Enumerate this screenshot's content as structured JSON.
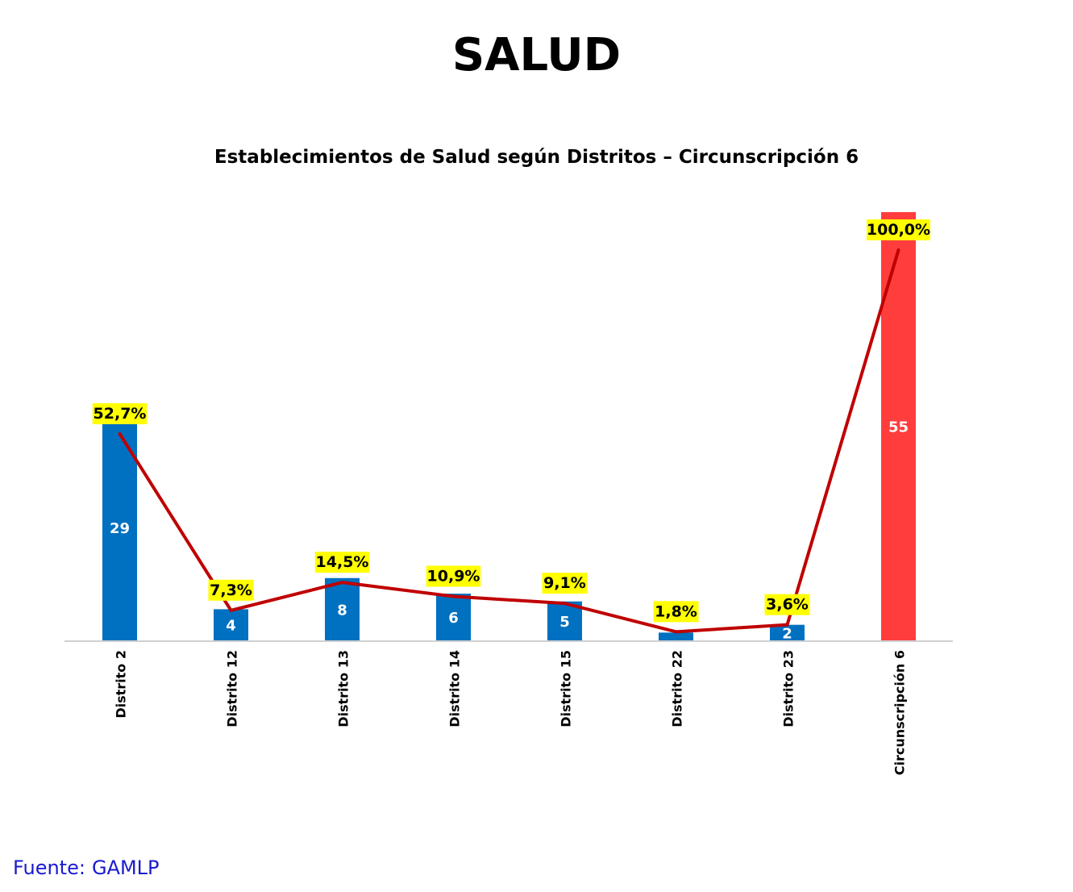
{
  "page_title": "SALUD",
  "source": {
    "label": "Fuente:",
    "value": "GAMLP"
  },
  "chart_data": {
    "type": "bar",
    "title": "Establecimientos de Salud según Distritos – Circunscripción 6",
    "xlabel": "",
    "ylabel": "",
    "categories": [
      "Distrito 2",
      "Distrito 12",
      "Distrito 13",
      "Distrito 14",
      "Distrito 15",
      "Distrito 22",
      "Distrito 23",
      "Circunscripción 6"
    ],
    "series": [
      {
        "type": "bar",
        "values": [
          29,
          4,
          8,
          6,
          5,
          1,
          2,
          55
        ],
        "value_labels": [
          "29",
          "4",
          "8",
          "6",
          "5",
          "",
          "2",
          "55"
        ]
      },
      {
        "type": "line",
        "values": [
          52.7,
          7.3,
          14.5,
          10.9,
          9.1,
          1.8,
          3.6,
          100.0
        ],
        "value_labels": [
          "52,7%",
          "7,3%",
          "14,5%",
          "10,9%",
          "9,1%",
          "1,8%",
          "3,6%",
          "100,0%"
        ]
      }
    ],
    "ylim": [
      0,
      56
    ],
    "grid": false,
    "legend": "none",
    "colors": {
      "bar": "#0070c0",
      "total_bar": "#ff3d3d",
      "line": "#c00000",
      "label_bg": "#ffff00"
    }
  }
}
